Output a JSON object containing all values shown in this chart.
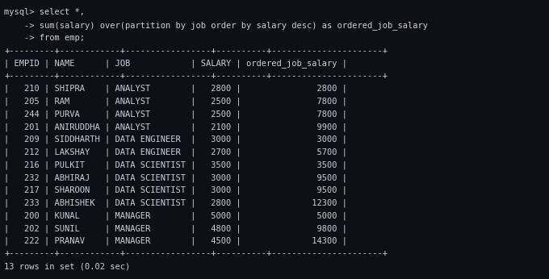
{
  "bg_color": "#0d1117",
  "text_color": "#c9d1d9",
  "query_lines": [
    "mysql> select *,",
    "    -> sum(salary) over(partition by job order by salary desc) as ordered_job_salary",
    "    -> from emp;"
  ],
  "headers": [
    "EMPID",
    "NAME",
    "JOB",
    "SALARY",
    "ordered_job_salary"
  ],
  "rows": [
    [
      "210",
      "SHIPRA",
      "ANALYST",
      "2800",
      "2800"
    ],
    [
      "205",
      "RAM",
      "ANALYST",
      "2500",
      "7800"
    ],
    [
      "244",
      "PURVA",
      "ANALYST",
      "2500",
      "7800"
    ],
    [
      "201",
      "ANIRUDDHA",
      "ANALYST",
      "2100",
      "9900"
    ],
    [
      "209",
      "SIDDHARTH",
      "DATA ENGINEER",
      "3000",
      "3000"
    ],
    [
      "212",
      "LAKSHAY",
      "DATA ENGINEER",
      "2700",
      "5700"
    ],
    [
      "216",
      "PULKIT",
      "DATA SCIENTIST",
      "3500",
      "3500"
    ],
    [
      "232",
      "ABHIRAJ",
      "DATA SCIENTIST",
      "3000",
      "9500"
    ],
    [
      "217",
      "SHAROON",
      "DATA SCIENTIST",
      "3000",
      "9500"
    ],
    [
      "233",
      "ABHISHEK",
      "DATA SCIENTIST",
      "2800",
      "12300"
    ],
    [
      "200",
      "KUNAL",
      "MANAGER",
      "5000",
      "5000"
    ],
    [
      "202",
      "SUNIL",
      "MANAGER",
      "4800",
      "9800"
    ],
    [
      "222",
      "PRANAV",
      "MANAGER",
      "4500",
      "14300"
    ]
  ],
  "footer": "13 rows in set (0.02 sec)",
  "font_size": 7.5,
  "font_family": "DejaVu Sans Mono",
  "col_display_widths": [
    5,
    9,
    14,
    6,
    18
  ],
  "sep_parts_widths": [
    7,
    10,
    15,
    8,
    20
  ]
}
